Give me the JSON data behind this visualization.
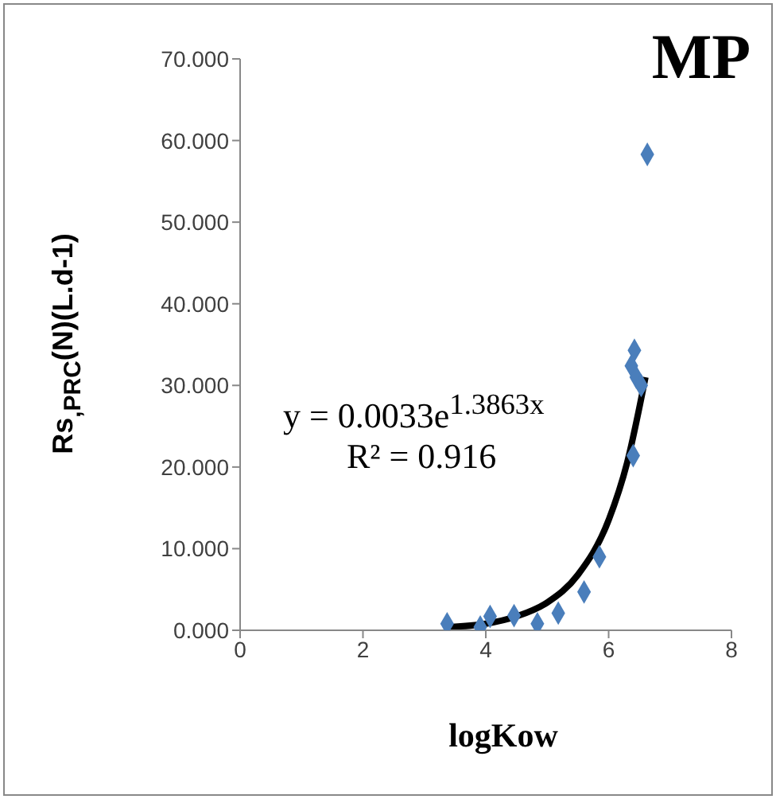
{
  "chart_data": {
    "type": "scatter",
    "title": "MP",
    "xlabel": "logKow",
    "ylabel": "Rs$_{,PRC}$(N)(L.d-1)",
    "xlim": [
      0,
      8
    ],
    "xticks": [
      0,
      2,
      4,
      6,
      8
    ],
    "ylim": [
      0,
      70
    ],
    "yticks": [
      {
        "value": 0,
        "label": "0.000"
      },
      {
        "value": 10,
        "label": "10.000"
      },
      {
        "value": 20,
        "label": "20.000"
      },
      {
        "value": 30,
        "label": "30.000"
      },
      {
        "value": 40,
        "label": "40.000"
      },
      {
        "value": 50,
        "label": "50.000"
      },
      {
        "value": 60,
        "label": "60.000"
      },
      {
        "value": 70,
        "label": "70.000"
      }
    ],
    "legend": false,
    "marker": "diamond",
    "series": [
      {
        "color": "#4a7ebb",
        "x": [
          3.37,
          3.91,
          4.07,
          4.46,
          4.84,
          5.18,
          5.6,
          5.85,
          6.4,
          6.63,
          6.42,
          6.37,
          6.45,
          6.53
        ],
        "values": [
          0.8,
          0.4,
          1.7,
          1.8,
          0.8,
          2.1,
          4.7,
          9.0,
          21.4,
          58.3,
          34.3,
          32.4,
          31.0,
          30.0
        ]
      },
      {
        "type": "line",
        "color": "#000000",
        "marker": "none",
        "x": [
          3.4,
          4.0,
          4.5,
          5.0,
          5.5,
          6.0,
          6.3,
          6.6
        ],
        "values": [
          0.4,
          0.8,
          1.7,
          3.4,
          6.8,
          13.5,
          20.5,
          31.0
        ]
      }
    ],
    "annotations": [
      "y = 0.0033e$^{1.3863x}$",
      "R² = 0.916"
    ]
  }
}
